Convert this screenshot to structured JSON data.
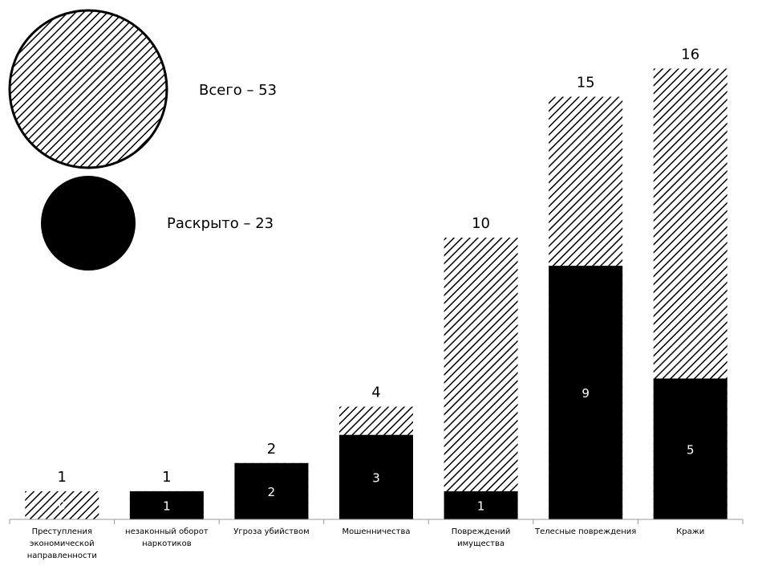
{
  "chart_data": {
    "type": "bar",
    "subtype": "overlapped",
    "categories": [
      "Преступления экономической направленности",
      "незаконный оборот наркотиков",
      "Угроза убийством",
      "Мошенничества",
      "Повреждений имущества",
      "Телесные повреждения",
      "Кражи"
    ],
    "series": [
      {
        "name": "Всего",
        "values": [
          1,
          1,
          2,
          4,
          10,
          15,
          16
        ],
        "pattern": "diagonal-hatch"
      },
      {
        "name": "Раскрыто",
        "values": [
          0,
          1,
          2,
          3,
          1,
          9,
          5
        ],
        "color": "#000000"
      }
    ],
    "ylim": [
      0,
      16
    ],
    "grid": false,
    "legend": {
      "placement": "top-left",
      "total_text": "Всего – 53",
      "solved_text": "Раскрыто – 23"
    }
  }
}
